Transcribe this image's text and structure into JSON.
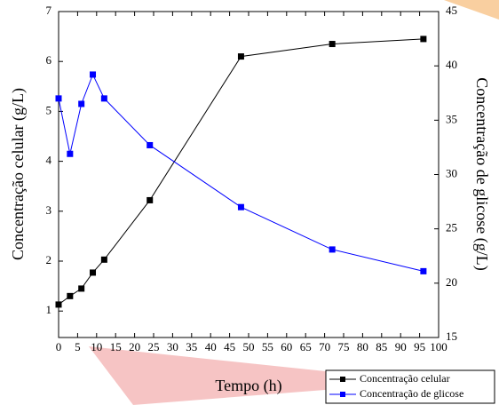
{
  "chart_data": {
    "type": "line",
    "x_label": "Tempo (h)",
    "y_label": "Concentração celular (g/L)",
    "y2_label": "Concentração de glicose (g/L)",
    "x": [
      0,
      3,
      6,
      9,
      12,
      24,
      48,
      72,
      96
    ],
    "series": [
      {
        "name": "Concentração celular",
        "color": "#000000",
        "values": [
          1.13,
          1.3,
          1.45,
          1.77,
          2.03,
          3.22,
          6.1,
          6.35,
          6.45
        ]
      },
      {
        "name": "Concentração de glicose",
        "color": "#0000ff",
        "axis": "y2",
        "values": [
          37.0,
          31.9,
          36.5,
          39.2,
          37.0,
          32.7,
          27.0,
          23.1,
          21.1
        ]
      }
    ],
    "xlim": [
      0,
      100
    ],
    "xticks": [
      0,
      5,
      10,
      15,
      20,
      25,
      30,
      35,
      40,
      45,
      50,
      55,
      60,
      65,
      70,
      75,
      80,
      85,
      90,
      95,
      100
    ],
    "ylim": [
      0.47,
      7
    ],
    "yticks": [
      1,
      2,
      3,
      4,
      5,
      6,
      7
    ],
    "y2lim": [
      15,
      45
    ],
    "y2ticks": [
      15,
      20,
      25,
      30,
      35,
      40,
      45
    ],
    "legend": "lower-right"
  }
}
